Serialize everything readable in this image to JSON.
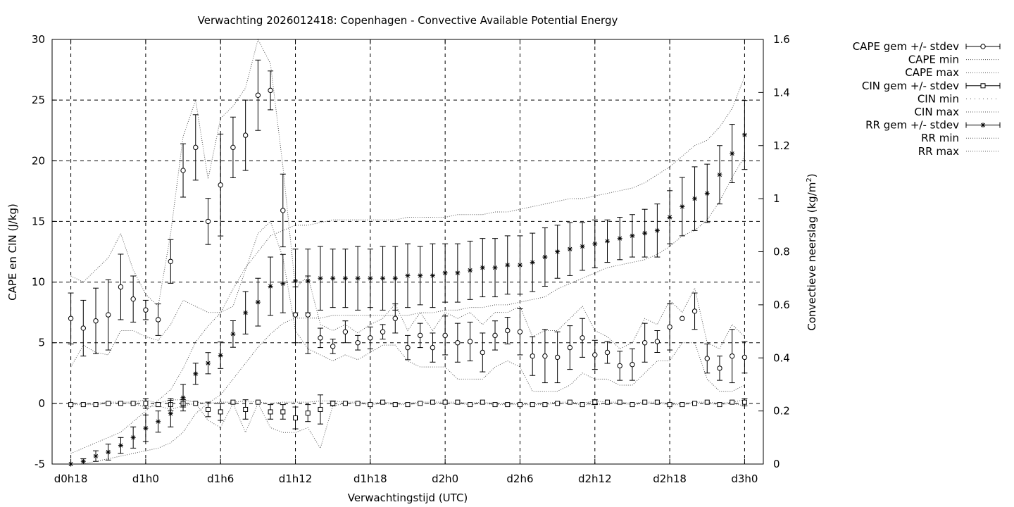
{
  "chart_data": {
    "type": "scatter",
    "title": "Verwachting 2026012418: Copenhagen - Convective Available Potential Energy",
    "xlabel": "Verwachtingstijd (UTC)",
    "ylabel_left": "CAPE en CIN (J/kg)",
    "ylabel_right_main": "Convectieve neerslag (kg/m",
    "ylabel_right_sup": "2",
    "ylabel_right_end": ")",
    "x_unit": "hours since d0h18",
    "xlim": [
      -1.5,
      55.5
    ],
    "ylim_left": [
      -5,
      30
    ],
    "ylim_right": [
      0,
      1.6
    ],
    "grid": true,
    "legend_position": "outside-right",
    "x_ticks": [
      {
        "x": 0,
        "label": "d0h18"
      },
      {
        "x": 6,
        "label": "d1h0"
      },
      {
        "x": 12,
        "label": "d1h6"
      },
      {
        "x": 18,
        "label": "d1h12"
      },
      {
        "x": 24,
        "label": "d1h18"
      },
      {
        "x": 30,
        "label": "d2h0"
      },
      {
        "x": 36,
        "label": "d2h6"
      },
      {
        "x": 42,
        "label": "d2h12"
      },
      {
        "x": 48,
        "label": "d2h18"
      },
      {
        "x": 54,
        "label": "d3h0"
      }
    ],
    "y_ticks_left": [
      -5,
      0,
      5,
      10,
      15,
      20,
      25,
      30
    ],
    "y_ticks_right": [
      0,
      0.2,
      0.4,
      0.6,
      0.8,
      1,
      1.2,
      1.4,
      1.6
    ],
    "legend": [
      {
        "label": "CAPE gem +/- stdev",
        "style": "errorbar-circle"
      },
      {
        "label": "CAPE min",
        "style": "dotted"
      },
      {
        "label": "CAPE max",
        "style": "dotted"
      },
      {
        "label": "CIN gem +/- stdev",
        "style": "errorbar-square"
      },
      {
        "label": "CIN min",
        "style": "dotted-sparse"
      },
      {
        "label": "CIN max",
        "style": "dotted"
      },
      {
        "label": "RR gem +/- stdev",
        "style": "errorbar-star"
      },
      {
        "label": "RR min",
        "style": "dotted"
      },
      {
        "label": "RR max",
        "style": "dotted"
      }
    ],
    "series": [
      {
        "name": "CAPE gem +/- stdev",
        "axis": "left",
        "mean": [
          7.0,
          6.2,
          6.8,
          7.3,
          9.6,
          8.6,
          7.7,
          6.9,
          11.7,
          19.2,
          21.1,
          15.0,
          18.0,
          21.1,
          22.1,
          25.4,
          25.8,
          15.9,
          7.3,
          7.3,
          5.4,
          4.7,
          5.9,
          5.0,
          5.4,
          5.9,
          7.0,
          4.6,
          5.6,
          4.6,
          5.6,
          5.0,
          5.1,
          4.2,
          5.6,
          6.0,
          5.9,
          3.9,
          3.9,
          3.8,
          4.6,
          5.4,
          4.0,
          4.2,
          3.1,
          3.2,
          5.0,
          5.1,
          6.3,
          7.0,
          7.6,
          3.7,
          2.9,
          3.9,
          3.8
        ],
        "stdev": [
          2.1,
          2.3,
          2.7,
          2.9,
          2.7,
          1.9,
          0.8,
          1.3,
          1.8,
          2.2,
          2.7,
          1.9,
          4.2,
          2.5,
          2.9,
          2.9,
          1.6,
          3.0,
          2.3,
          3.2,
          0.8,
          0.6,
          0.9,
          0.6,
          0.9,
          0.6,
          1.2,
          1.0,
          1.0,
          1.2,
          1.6,
          1.6,
          1.6,
          1.6,
          1.2,
          1.1,
          1.9,
          1.6,
          2.2,
          2.1,
          1.8,
          1.6,
          1.2,
          0.9,
          1.2,
          1.3,
          1.6,
          0.9,
          1.9,
          0.0,
          1.5,
          1.2,
          1.0,
          2.2,
          1.3
        ]
      },
      {
        "name": "CAPE min",
        "axis": "left",
        "values": [
          3.0,
          4.8,
          4.2,
          4.0,
          6.0,
          6.0,
          5.5,
          5.2,
          6.5,
          8.5,
          8.0,
          7.5,
          7.5,
          8.0,
          11.0,
          14.0,
          15.0,
          12.0,
          6.0,
          4.5,
          4.0,
          3.5,
          4.0,
          3.6,
          4.2,
          4.8,
          4.8,
          3.5,
          3.0,
          3.0,
          3.0,
          2.0,
          2.0,
          2.0,
          3.0,
          3.5,
          3.0,
          1.0,
          1.0,
          1.0,
          1.5,
          2.5,
          2.0,
          2.0,
          1.5,
          1.5,
          2.5,
          3.5,
          3.5,
          5.0,
          5.0,
          2.0,
          1.0,
          1.0,
          1.5
        ]
      },
      {
        "name": "CAPE max",
        "axis": "left",
        "values": [
          10.5,
          10.0,
          11.0,
          12.0,
          14.0,
          11.0,
          9.0,
          8.0,
          14.0,
          22.0,
          25.0,
          18.5,
          23.5,
          24.5,
          26.0,
          30.0,
          28.0,
          19.5,
          9.5,
          10.5,
          6.5,
          6.0,
          6.5,
          5.8,
          6.5,
          7.0,
          8.2,
          6.0,
          7.5,
          6.0,
          7.5,
          7.0,
          7.5,
          6.5,
          7.5,
          7.5,
          8.0,
          5.5,
          6.0,
          6.0,
          7.0,
          8.0,
          6.0,
          5.5,
          4.5,
          5.0,
          7.0,
          6.5,
          8.5,
          7.5,
          9.5,
          5.0,
          4.5,
          6.5,
          5.5
        ]
      },
      {
        "name": "CIN gem +/- stdev",
        "axis": "left",
        "mean": [
          -0.1,
          -0.1,
          -0.1,
          0.0,
          0.0,
          0.0,
          0.0,
          -0.1,
          -0.1,
          0.0,
          0.0,
          -0.5,
          -0.7,
          0.1,
          -0.5,
          0.1,
          -0.7,
          -0.7,
          -1.2,
          -0.8,
          -0.5,
          0.0,
          0.0,
          0.0,
          -0.1,
          0.1,
          -0.1,
          -0.1,
          0.0,
          0.1,
          0.1,
          0.1,
          -0.1,
          0.1,
          -0.1,
          -0.1,
          -0.1,
          -0.1,
          -0.1,
          0.0,
          0.1,
          -0.1,
          0.1,
          0.1,
          0.1,
          -0.1,
          0.1,
          0.1,
          -0.1,
          -0.1,
          0.0,
          0.1,
          -0.1,
          0.1,
          0.1
        ],
        "stdev": [
          0.0,
          0.0,
          0.0,
          0.0,
          0.0,
          0.0,
          0.4,
          0.0,
          0.5,
          0.3,
          0.0,
          0.6,
          0.7,
          0.0,
          0.8,
          0.0,
          0.6,
          0.6,
          0.9,
          0.7,
          1.2,
          0.2,
          0.0,
          0.0,
          0.0,
          0.0,
          0.0,
          0.0,
          0.0,
          0.0,
          0.0,
          0.0,
          0.0,
          0.0,
          0.0,
          0.0,
          0.0,
          0.0,
          0.0,
          0.0,
          0.0,
          0.0,
          0.2,
          0.0,
          0.0,
          0.0,
          0.0,
          0.0,
          0.0,
          0.0,
          0.0,
          0.0,
          0.0,
          0.0,
          0.3
        ]
      },
      {
        "name": "CIN min",
        "axis": "left",
        "values": [
          -0.1,
          -0.1,
          -0.1,
          0.0,
          0.0,
          0.0,
          -0.3,
          -0.2,
          -0.5,
          -0.2,
          0.0,
          -1.4,
          -2.0,
          0.0,
          -2.4,
          0.0,
          -2.0,
          -2.4,
          -2.4,
          -2.0,
          -3.7,
          -0.2,
          0.0,
          0.0,
          -0.1,
          0.0,
          -0.1,
          -0.1,
          0.0,
          0.0,
          0.0,
          0.0,
          -0.1,
          0.0,
          -0.1,
          -0.1,
          -0.1,
          -0.1,
          -0.1,
          0.0,
          0.0,
          -0.1,
          -0.1,
          0.0,
          0.0,
          -0.1,
          0.0,
          0.0,
          -0.1,
          -0.1,
          0.0,
          0.0,
          -0.1,
          0.0,
          -0.2
        ]
      },
      {
        "name": "CIN max",
        "axis": "left",
        "values": [
          0.0,
          0.0,
          0.0,
          0.1,
          0.1,
          0.1,
          0.3,
          0.0,
          0.3,
          0.3,
          0.1,
          0.0,
          0.1,
          0.1,
          0.2,
          0.1,
          0.0,
          0.1,
          0.1,
          0.1,
          0.2,
          0.2,
          0.1,
          0.1,
          0.0,
          0.1,
          0.0,
          0.0,
          0.1,
          0.1,
          0.1,
          0.1,
          0.0,
          0.1,
          0.0,
          0.0,
          0.0,
          0.0,
          0.0,
          0.1,
          0.1,
          0.0,
          0.2,
          0.1,
          0.1,
          0.0,
          0.1,
          0.1,
          0.0,
          0.0,
          0.1,
          0.1,
          0.0,
          0.1,
          0.3
        ]
      },
      {
        "name": "RR gem +/- stdev",
        "axis": "right",
        "mean": [
          0.0,
          0.01,
          0.03,
          0.045,
          0.07,
          0.1,
          0.135,
          0.16,
          0.19,
          0.25,
          0.34,
          0.38,
          0.41,
          0.49,
          0.57,
          0.61,
          0.67,
          0.68,
          0.69,
          0.69,
          0.7,
          0.7,
          0.7,
          0.7,
          0.7,
          0.7,
          0.7,
          0.71,
          0.71,
          0.71,
          0.72,
          0.72,
          0.73,
          0.74,
          0.74,
          0.75,
          0.75,
          0.76,
          0.78,
          0.8,
          0.81,
          0.82,
          0.83,
          0.84,
          0.85,
          0.86,
          0.87,
          0.88,
          0.93,
          0.97,
          1.0,
          1.02,
          1.09,
          1.17,
          1.24
        ],
        "stdev": [
          0.0,
          0.01,
          0.02,
          0.03,
          0.03,
          0.04,
          0.05,
          0.04,
          0.05,
          0.05,
          0.04,
          0.04,
          0.05,
          0.05,
          0.08,
          0.09,
          0.11,
          0.11,
          0.12,
          0.12,
          0.12,
          0.11,
          0.11,
          0.12,
          0.11,
          0.12,
          0.12,
          0.12,
          0.11,
          0.12,
          0.11,
          0.11,
          0.11,
          0.11,
          0.11,
          0.11,
          0.11,
          0.11,
          0.11,
          0.1,
          0.1,
          0.09,
          0.09,
          0.08,
          0.08,
          0.08,
          0.09,
          0.1,
          0.1,
          0.11,
          0.12,
          0.11,
          0.11,
          0.11,
          0.13
        ]
      },
      {
        "name": "RR min",
        "axis": "right",
        "values": [
          0.0,
          0.0,
          0.01,
          0.02,
          0.03,
          0.04,
          0.05,
          0.06,
          0.08,
          0.12,
          0.19,
          0.23,
          0.26,
          0.32,
          0.38,
          0.44,
          0.49,
          0.53,
          0.55,
          0.55,
          0.55,
          0.56,
          0.56,
          0.56,
          0.56,
          0.56,
          0.56,
          0.56,
          0.57,
          0.57,
          0.58,
          0.58,
          0.59,
          0.59,
          0.6,
          0.6,
          0.61,
          0.62,
          0.63,
          0.66,
          0.68,
          0.7,
          0.72,
          0.74,
          0.75,
          0.76,
          0.77,
          0.79,
          0.82,
          0.86,
          0.88,
          0.92,
          0.99,
          1.08,
          1.16
        ]
      },
      {
        "name": "RR max",
        "axis": "right",
        "values": [
          0.04,
          0.06,
          0.08,
          0.1,
          0.12,
          0.16,
          0.2,
          0.24,
          0.28,
          0.36,
          0.46,
          0.52,
          0.57,
          0.66,
          0.74,
          0.8,
          0.86,
          0.88,
          0.9,
          0.9,
          0.91,
          0.92,
          0.92,
          0.92,
          0.92,
          0.92,
          0.92,
          0.93,
          0.93,
          0.93,
          0.93,
          0.94,
          0.94,
          0.94,
          0.95,
          0.95,
          0.96,
          0.97,
          0.98,
          0.99,
          1.0,
          1.0,
          1.01,
          1.02,
          1.03,
          1.04,
          1.06,
          1.09,
          1.12,
          1.16,
          1.2,
          1.22,
          1.27,
          1.34,
          1.46
        ]
      }
    ]
  }
}
